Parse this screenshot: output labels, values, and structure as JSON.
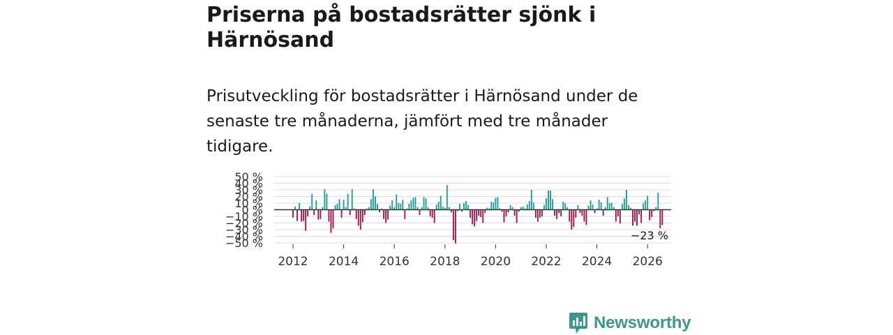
{
  "title": "Priserna på bostadsrätter sjönk i Härnösand",
  "subtitle": "Prisutveckling för bostadsrätter i Härnösand under de senaste tre månaderna, jämfört med tre månader tidigare.",
  "brand": {
    "name": "Newsworthy",
    "icon": "newsworthy-logo-icon"
  },
  "colors": {
    "positive": "#1a9e96",
    "negative": "#a3124a",
    "grid": "#dcdcdc",
    "zero": "#333333",
    "brand": "#3a9a8a"
  },
  "chart_data": {
    "type": "bar",
    "title": "",
    "xlabel": "",
    "ylabel": "",
    "ylim": [
      -50,
      50
    ],
    "x_start": 2012.0,
    "x_step": 0.08333,
    "ytick_values": [
      -50,
      -40,
      -30,
      -20,
      -10,
      0,
      10,
      20,
      30,
      40,
      50
    ],
    "ytick_labels": [
      "−50 %",
      "−40 %",
      "−30 %",
      "−20 %",
      "−10 %",
      "0 %",
      "10 %",
      "20 %",
      "30 %",
      "40 %",
      "50 %"
    ],
    "xtick_values": [
      2012,
      2014,
      2016,
      2018,
      2020,
      2022,
      2024,
      2026
    ],
    "xtick_labels": [
      "2012",
      "2014",
      "2016",
      "2018",
      "2020",
      "2022",
      "2024",
      "2026"
    ],
    "annotation": {
      "text": "−23 %",
      "x": 2026.1,
      "y": -23
    },
    "values": [
      -12,
      5,
      -17,
      10,
      -18,
      -17,
      -32,
      -10,
      5,
      24,
      -8,
      14,
      -15,
      -14,
      4,
      31,
      24,
      -18,
      -35,
      -28,
      7,
      9,
      16,
      -12,
      15,
      4,
      24,
      -8,
      31,
      2,
      -14,
      -24,
      -30,
      -19,
      -8,
      2,
      4,
      16,
      31,
      20,
      9,
      -4,
      2,
      -14,
      -20,
      -15,
      6,
      14,
      4,
      23,
      10,
      9,
      15,
      -14,
      2,
      9,
      14,
      18,
      19,
      4,
      -8,
      4,
      19,
      17,
      4,
      -10,
      -12,
      -20,
      8,
      12,
      21,
      5,
      3,
      37,
      4,
      -4,
      -46,
      -51,
      -2,
      9,
      -3,
      10,
      13,
      7,
      -12,
      -22,
      -25,
      -17,
      -9,
      -11,
      -20,
      -5,
      3,
      2,
      12,
      11,
      18,
      19,
      2,
      -3,
      -19,
      -10,
      -4,
      7,
      4,
      -9,
      -20,
      -3,
      4,
      5,
      2,
      8,
      13,
      30,
      11,
      -12,
      -18,
      -12,
      -10,
      7,
      17,
      29,
      29,
      16,
      -9,
      -14,
      -5,
      -10,
      12,
      10,
      4,
      -18,
      -30,
      -26,
      -12,
      7,
      -5,
      -9,
      -18,
      -23,
      6,
      14,
      8,
      -5,
      2,
      15,
      11,
      -9,
      4,
      19,
      10,
      10,
      4,
      -18,
      -10,
      -21,
      9,
      17,
      30,
      7,
      3,
      -24,
      -18,
      -24,
      -7,
      -20,
      10,
      14,
      21,
      -16,
      -11,
      -2,
      4,
      26,
      -28,
      -23
    ]
  }
}
